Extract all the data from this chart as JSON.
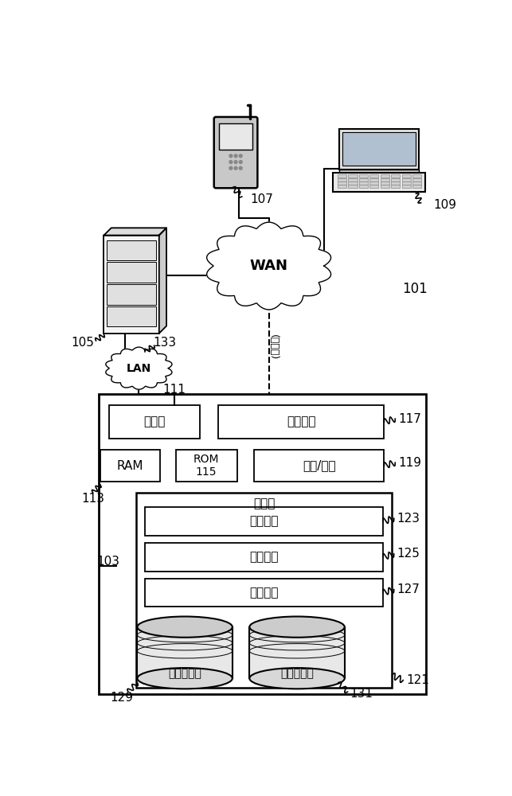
{
  "bg_color": "#ffffff",
  "fig_width": 6.43,
  "fig_height": 10.0,
  "labels": {
    "107": "107",
    "109": "109",
    "105": "105",
    "133": "133",
    "LAN": "LAN",
    "111": "111",
    "WAN": "WAN",
    "101": "101",
    "optional": "(任选的)",
    "117": "117",
    "119": "119",
    "113": "113",
    "103": "103",
    "129": "129",
    "131": "131",
    "121": "121",
    "123": "123",
    "125": "125",
    "127": "127",
    "processor": "处理器",
    "network_interface": "网络接口",
    "RAM": "RAM",
    "ROM": "ROM\n115",
    "io": "输入/输出",
    "storage": "存储器",
    "os": "操作系统",
    "control_logic": "控制逻辑",
    "other_apps": "其他应用",
    "db1": "第一数据库",
    "db2": "第二数据库"
  }
}
